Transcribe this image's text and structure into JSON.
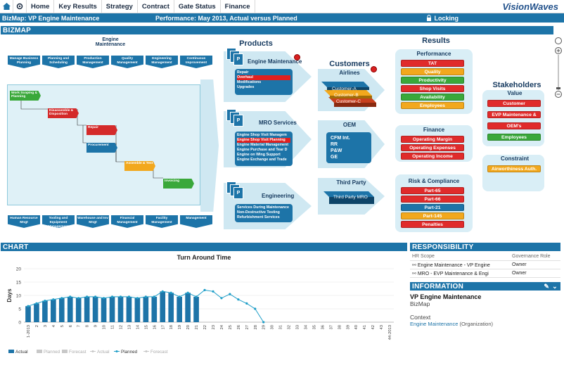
{
  "nav": {
    "items": [
      "Home",
      "Key Results",
      "Strategy",
      "Contract",
      "Gate Status",
      "Finance"
    ],
    "logo": "VisionWaves"
  },
  "titlebar": {
    "title": "BizMap: VP Engine Maintenance",
    "performance": "Performance: May 2013, Actual versus Planned",
    "locking": "Locking"
  },
  "bizmap": {
    "header": "BIZMAP",
    "engine_maintenance_label": "Engine\nMaintenance",
    "top_processes": [
      "Manage Business Planning",
      "Planning and Scheduling",
      "Production Management",
      "Quality Management",
      "Engineering Management",
      "Continuous Improvement"
    ],
    "flow_steps": [
      "Work Scoping & Planning",
      "Disassemble & Disposition",
      "Repair",
      "Procurement",
      "Assemble & Test",
      "Invoicing"
    ],
    "bottom_processes": [
      "Human Resource Mngt",
      "Tooling and Equipment Management",
      "Warehouse and Inv Mngt",
      "Financial Management",
      "Facility Management",
      "Management"
    ],
    "products_title": "Products",
    "products": [
      {
        "name": "Engine Maintenance",
        "items": [
          "Repair",
          "Overhaul",
          "Modifications",
          "Upgrades"
        ],
        "selected": 1
      },
      {
        "name": "MRO Services",
        "items": [
          "Engine Shop Visit Managem",
          "Engine Shop Visit Planning",
          "Engine Material Management",
          "Engine Purchase and Tear D",
          "Engine on Wing Support",
          "Engine Exchange and Trade"
        ],
        "selected": 1
      },
      {
        "name": "Engineering",
        "items": [
          "Services During Maintenance",
          "Non-Destructive Testing",
          "Refurbishment Services"
        ],
        "selected": -1
      }
    ],
    "customers_title": "Customers",
    "customers": [
      {
        "name": "Airlines",
        "items": [
          "Customer-A",
          "Customer-B",
          "Customer-C"
        ]
      },
      {
        "name": "OEM",
        "items": [
          "CFM Int.",
          "RR",
          "P&W",
          "GE"
        ]
      },
      {
        "name": "Third Party",
        "items": [
          "Third Party MRO"
        ]
      }
    ],
    "results_title": "Results",
    "results": [
      {
        "name": "Performance",
        "items": [
          {
            "label": "TAT",
            "color": "#e02b2b"
          },
          {
            "label": "Quality",
            "color": "#f2a81d"
          },
          {
            "label": "Productivity",
            "color": "#3aa83a"
          },
          {
            "label": "Shop Visits",
            "color": "#e02b2b"
          },
          {
            "label": "Availability",
            "color": "#3aa83a"
          },
          {
            "label": "Employees",
            "color": "#f2a81d"
          }
        ]
      },
      {
        "name": "Finance",
        "items": [
          {
            "label": "Operating Margin",
            "color": "#e02b2b"
          },
          {
            "label": "Operating Expenses",
            "color": "#e02b2b"
          },
          {
            "label": "Operating Income",
            "color": "#e02b2b"
          }
        ]
      },
      {
        "name": "Risk & Compliance",
        "items": [
          {
            "label": "Part-65",
            "color": "#e02b2b"
          },
          {
            "label": "Part-66",
            "color": "#e02b2b"
          },
          {
            "label": "Part-21",
            "color": "#1d74a8"
          },
          {
            "label": "Part-145",
            "color": "#f2a81d"
          },
          {
            "label": "Penalties",
            "color": "#e02b2b"
          }
        ]
      }
    ],
    "stakeholders_title": "Stakeholders",
    "value_title": "Value",
    "value_items": [
      {
        "label": "Customer",
        "color": "#e02b2b"
      },
      {
        "label": "EVP Maintenance &",
        "color": "#e02b2b"
      },
      {
        "label": "OEM's",
        "color": "#e02b2b"
      },
      {
        "label": "Employees",
        "color": "#3aa83a"
      }
    ],
    "constraint_title": "Constraint",
    "constraint_items": [
      {
        "label": "Airworthiness Auth.",
        "color": "#f2a81d"
      }
    ]
  },
  "chart_panel": {
    "header": "CHART"
  },
  "chart_data": {
    "type": "line",
    "title": "Turn Around Time",
    "ylabel": "Days",
    "ylim": [
      0,
      20
    ],
    "yticks": [
      0,
      5,
      10,
      15,
      20
    ],
    "x": [
      "1-2013",
      "2",
      "3",
      "4",
      "5",
      "6",
      "7",
      "8",
      "9",
      "10",
      "11",
      "12",
      "13",
      "14",
      "15",
      "16",
      "17",
      "18",
      "19",
      "20",
      "21",
      "22",
      "23",
      "24",
      "25",
      "26",
      "27",
      "28",
      "29",
      "30",
      "31",
      "32",
      "33",
      "34",
      "35",
      "36",
      "37",
      "38",
      "39",
      "40",
      "41",
      "42",
      "43",
      "44-2013"
    ],
    "series": [
      {
        "name": "Actual",
        "type": "bar",
        "values": [
          6,
          7,
          8,
          8.5,
          9,
          9.5,
          9,
          9.5,
          9.5,
          9,
          9.5,
          9.5,
          9.5,
          9,
          9.5,
          9.5,
          11.5,
          11,
          9.5,
          11,
          9.5,
          null,
          null,
          null,
          null,
          null,
          null,
          null,
          null,
          null,
          null,
          null,
          null,
          null,
          null,
          null,
          null,
          null,
          null,
          null,
          null,
          null,
          null,
          null
        ]
      },
      {
        "name": "Planned",
        "type": "line",
        "values": [
          6,
          7,
          8,
          8.5,
          9,
          9.5,
          9,
          9.5,
          9.5,
          9,
          9.5,
          9.5,
          9.5,
          9,
          9.5,
          9.5,
          11.5,
          11,
          9.5,
          11,
          9.5,
          12,
          11.5,
          9,
          10.5,
          8.5,
          7,
          5,
          0,
          null,
          null,
          null,
          null,
          null,
          null,
          null,
          null,
          null,
          null,
          null,
          null,
          null,
          null,
          null
        ]
      }
    ],
    "legend": [
      "Actual",
      "Planned",
      "Forecast",
      "Actual",
      "Planned",
      "Forecast"
    ]
  },
  "responsibility": {
    "header": "RESPONSIBILITY",
    "columns": [
      "HR Scope",
      "Governance Role"
    ],
    "rows": [
      {
        "scope": "Engine Maintenance - VP Engine",
        "role": "Owner"
      },
      {
        "scope": "MRO - EVP Maintenance & Engi",
        "role": "Owner"
      }
    ]
  },
  "information": {
    "header": "INFORMATION",
    "name": "VP Engine Maintenance",
    "type": "BizMap",
    "context_label": "Context",
    "context_link": "Engine Maintenance",
    "context_type": "(Organization)"
  }
}
